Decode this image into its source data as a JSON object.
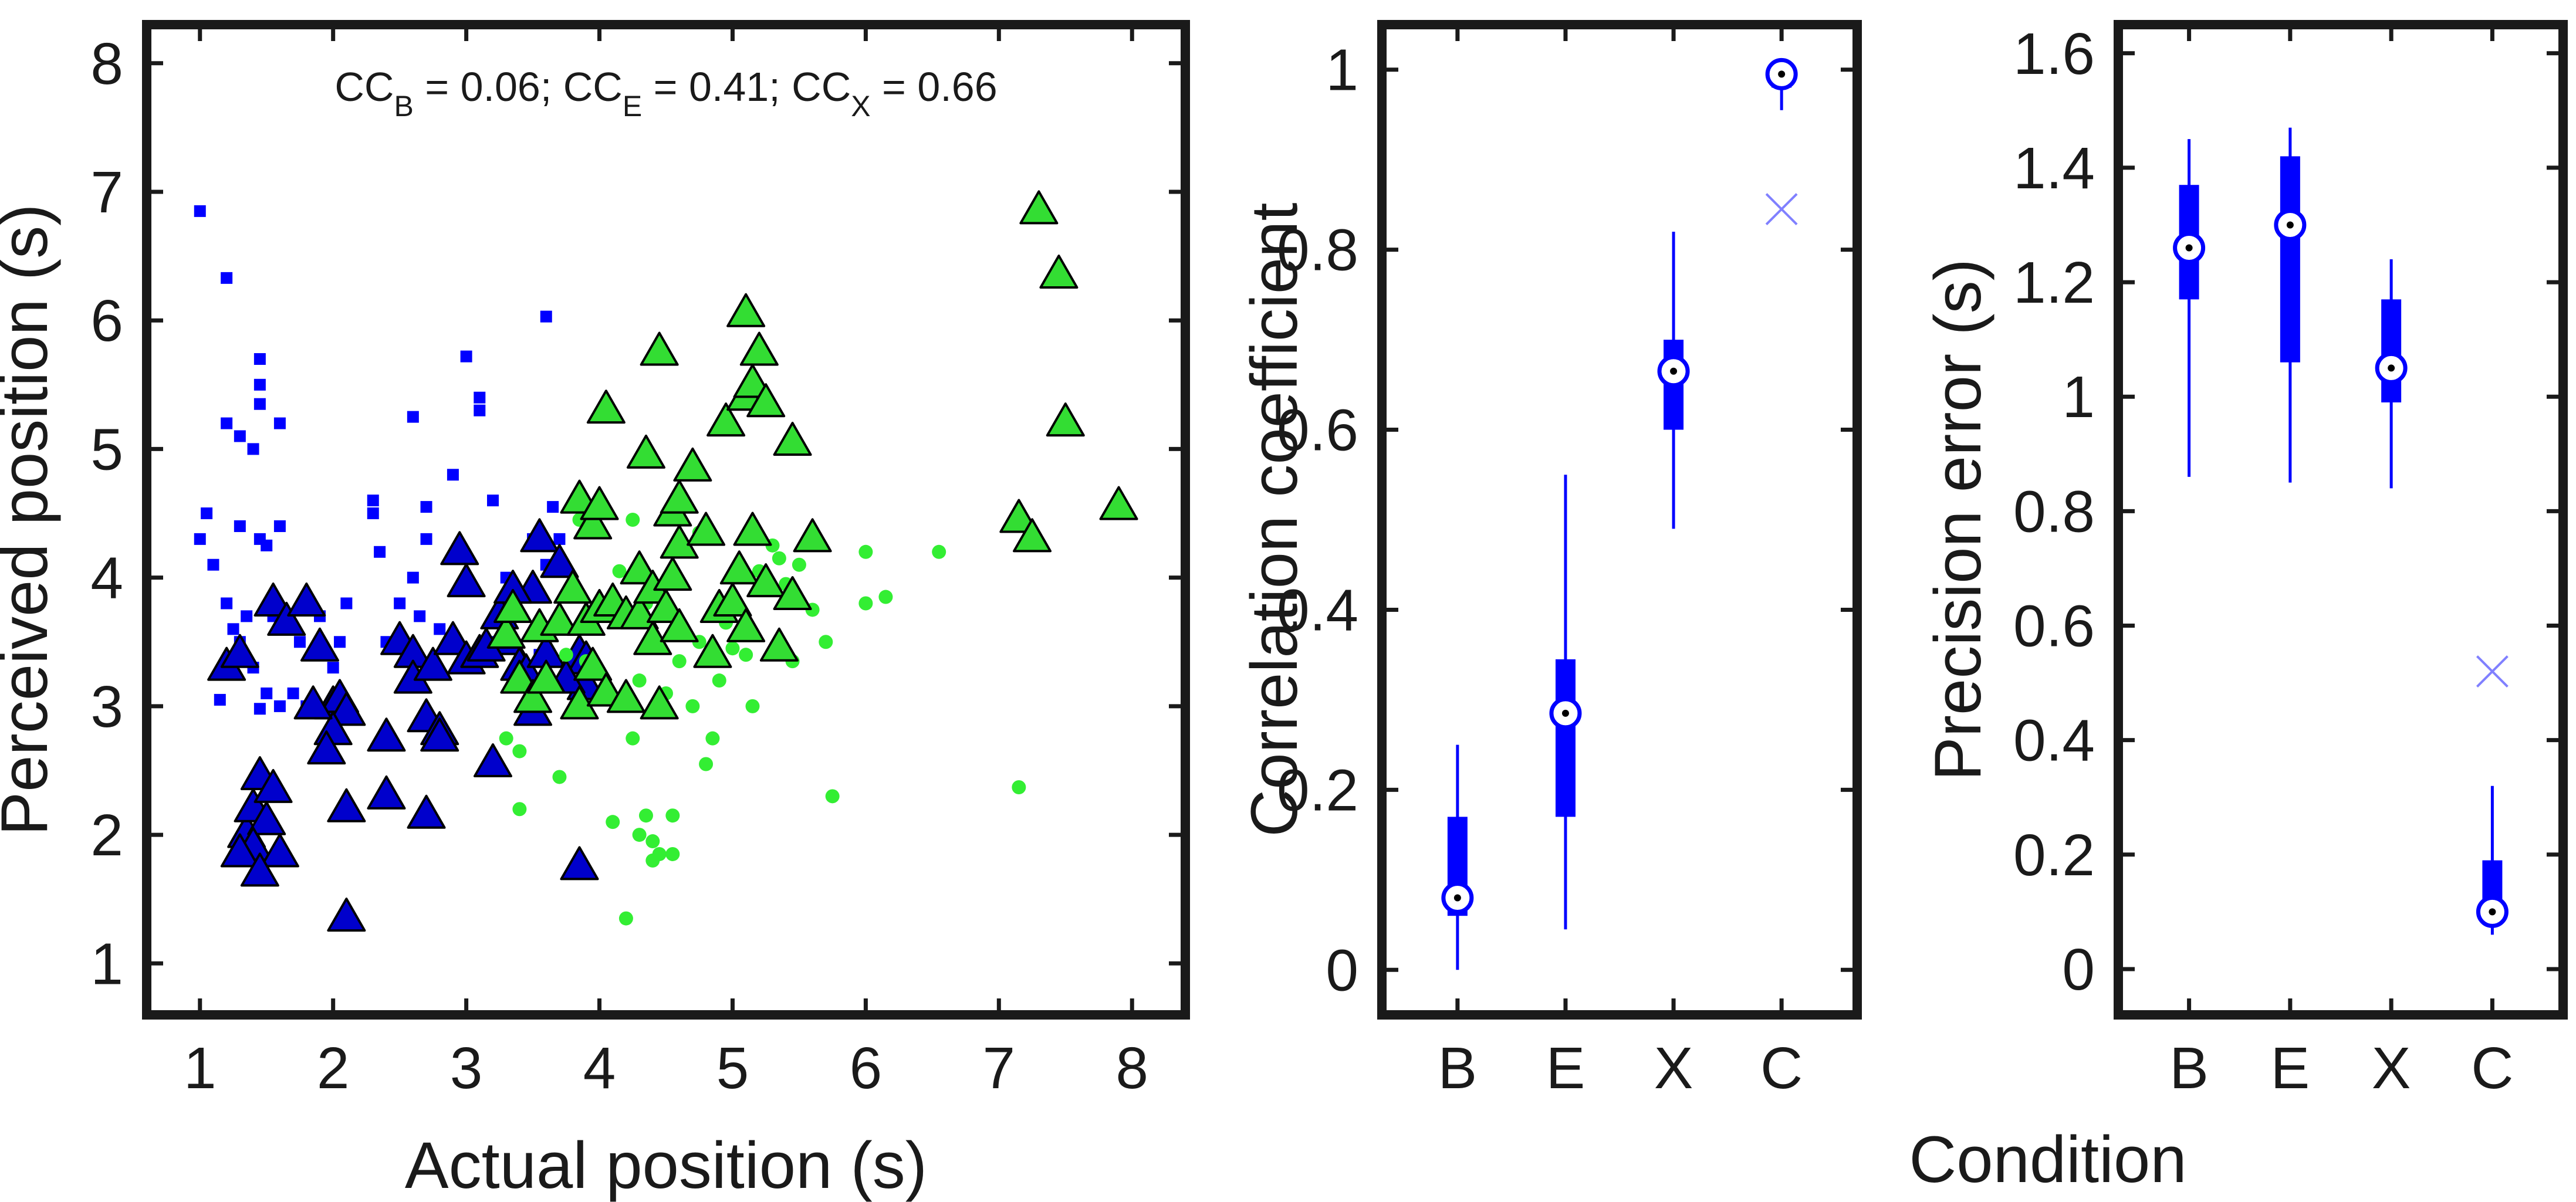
{
  "colors": {
    "scatter_blue": "#0000ff",
    "triangle_blue": "#0000cc",
    "green": "#33ee33",
    "triangle_green": "#33dd33",
    "boxplot_blue": "#0000ff",
    "cross_blue": "#8080ff",
    "axes": "#1a1a1a"
  },
  "annotation": {
    "cc_b_base": "CC",
    "cc_b_sub": "B",
    "cc_b_value": " = 0.06; ",
    "cc_e_base": "CC",
    "cc_e_sub": "E",
    "cc_e_value": " = 0.41; ",
    "cc_x_base": "CC",
    "cc_x_sub": "X",
    "cc_x_value": " = 0.66"
  },
  "shared_xlabel": "Condition",
  "chart_data": [
    {
      "type": "scatter",
      "xlabel": "Actual position (s)",
      "ylabel": "Perceived position (s)",
      "xlim": [
        0.6,
        8.4
      ],
      "ylim": [
        0.6,
        8.3
      ],
      "xticks": [
        "1",
        "2",
        "3",
        "4",
        "5",
        "6",
        "7",
        "8"
      ],
      "yticks": [
        "1",
        "2",
        "3",
        "4",
        "5",
        "6",
        "7",
        "8"
      ],
      "grid": false,
      "series": [
        {
          "marker": "square",
          "color": "blue",
          "points": [
            [
              1.0,
              6.85
            ],
            [
              1.2,
              6.33
            ],
            [
              1.05,
              4.5
            ],
            [
              1.0,
              4.3
            ],
            [
              1.1,
              4.1
            ],
            [
              1.2,
              5.2
            ],
            [
              1.3,
              5.1
            ],
            [
              1.4,
              5.0
            ],
            [
              1.45,
              5.7
            ],
            [
              1.45,
              5.5
            ],
            [
              1.45,
              5.35
            ],
            [
              1.6,
              5.2
            ],
            [
              1.3,
              4.4
            ],
            [
              1.45,
              4.3
            ],
            [
              1.5,
              4.25
            ],
            [
              1.6,
              4.4
            ],
            [
              1.2,
              3.8
            ],
            [
              1.25,
              3.6
            ],
            [
              1.3,
              3.5
            ],
            [
              1.35,
              3.7
            ],
            [
              1.4,
              3.3
            ],
            [
              1.5,
              3.1
            ],
            [
              1.55,
              3.7
            ],
            [
              1.6,
              3.0
            ],
            [
              1.7,
              3.1
            ],
            [
              1.75,
              3.5
            ],
            [
              1.8,
              3.8
            ],
            [
              1.9,
              3.7
            ],
            [
              2.0,
              3.3
            ],
            [
              2.05,
              3.5
            ],
            [
              2.1,
              3.8
            ],
            [
              1.15,
              3.05
            ],
            [
              1.45,
              2.98
            ],
            [
              1.8,
              3.0
            ],
            [
              1.6,
              3.6
            ],
            [
              2.3,
              4.6
            ],
            [
              2.3,
              4.5
            ],
            [
              2.35,
              4.2
            ],
            [
              2.4,
              3.5
            ],
            [
              2.5,
              3.8
            ],
            [
              2.6,
              4.0
            ],
            [
              2.65,
              3.7
            ],
            [
              2.7,
              4.3
            ],
            [
              2.7,
              4.55
            ],
            [
              2.8,
              3.6
            ],
            [
              2.9,
              4.8
            ],
            [
              3.0,
              5.72
            ],
            [
              3.1,
              5.4
            ],
            [
              3.1,
              5.3
            ],
            [
              2.6,
              5.25
            ],
            [
              3.6,
              6.03
            ],
            [
              3.2,
              4.6
            ],
            [
              3.3,
              4.0
            ],
            [
              3.5,
              4.3
            ],
            [
              3.4,
              3.7
            ],
            [
              3.55,
              3.4
            ],
            [
              3.6,
              4.1
            ],
            [
              3.7,
              4.3
            ],
            [
              3.65,
              4.55
            ],
            [
              3.0,
              3.9
            ],
            [
              3.2,
              3.5
            ]
          ]
        },
        {
          "marker": "triangle",
          "color": "blue",
          "points": [
            [
              1.2,
              3.3
            ],
            [
              1.3,
              3.4
            ],
            [
              1.55,
              3.8
            ],
            [
              1.65,
              3.65
            ],
            [
              1.8,
              3.8
            ],
            [
              1.9,
              3.45
            ],
            [
              2.0,
              3.0
            ],
            [
              2.05,
              3.05
            ],
            [
              2.1,
              2.95
            ],
            [
              2.0,
              2.8
            ],
            [
              1.95,
              2.65
            ],
            [
              1.85,
              3.0
            ],
            [
              1.35,
              2.0
            ],
            [
              1.4,
              2.2
            ],
            [
              1.45,
              2.45
            ],
            [
              1.5,
              2.1
            ],
            [
              1.55,
              2.35
            ],
            [
              1.4,
              1.9
            ],
            [
              1.3,
              1.85
            ],
            [
              1.6,
              1.85
            ],
            [
              1.45,
              1.7
            ],
            [
              2.1,
              2.2
            ],
            [
              2.1,
              1.35
            ],
            [
              2.4,
              2.75
            ],
            [
              2.4,
              2.3
            ],
            [
              2.5,
              3.5
            ],
            [
              2.6,
              3.4
            ],
            [
              2.6,
              3.2
            ],
            [
              2.7,
              2.9
            ],
            [
              2.75,
              3.3
            ],
            [
              2.8,
              2.8
            ],
            [
              2.8,
              2.75
            ],
            [
              2.7,
              2.15
            ],
            [
              2.9,
              3.5
            ],
            [
              2.95,
              4.2
            ],
            [
              3.0,
              3.35
            ],
            [
              3.0,
              3.95
            ],
            [
              3.1,
              3.4
            ],
            [
              3.2,
              2.55
            ],
            [
              3.25,
              3.7
            ],
            [
              3.3,
              3.5
            ],
            [
              3.4,
              3.3
            ],
            [
              3.45,
              3.25
            ],
            [
              3.5,
              3.9
            ],
            [
              3.55,
              4.3
            ],
            [
              3.6,
              3.4
            ],
            [
              3.7,
              4.1
            ],
            [
              3.5,
              2.95
            ],
            [
              3.85,
              3.4
            ],
            [
              3.9,
              3.15
            ],
            [
              3.9,
              3.35
            ],
            [
              3.85,
              1.75
            ],
            [
              3.15,
              3.45
            ],
            [
              3.35,
              3.9
            ],
            [
              3.75,
              3.2
            ]
          ]
        },
        {
          "marker": "circle",
          "color": "green",
          "points": [
            [
              3.3,
              2.75
            ],
            [
              3.4,
              2.2
            ],
            [
              3.4,
              2.65
            ],
            [
              3.7,
              2.45
            ],
            [
              3.75,
              3.4
            ],
            [
              3.9,
              3.35
            ],
            [
              4.1,
              2.1
            ],
            [
              4.2,
              1.35
            ],
            [
              4.3,
              2.0
            ],
            [
              4.35,
              2.15
            ],
            [
              4.4,
              1.95
            ],
            [
              4.4,
              1.8
            ],
            [
              4.45,
              1.85
            ],
            [
              4.55,
              1.85
            ],
            [
              4.55,
              2.15
            ],
            [
              4.25,
              2.75
            ],
            [
              4.3,
              3.2
            ],
            [
              4.4,
              3.55
            ],
            [
              4.5,
              3.1
            ],
            [
              4.6,
              3.35
            ],
            [
              4.7,
              3.0
            ],
            [
              4.75,
              3.5
            ],
            [
              4.8,
              2.55
            ],
            [
              4.85,
              2.75
            ],
            [
              4.9,
              3.2
            ],
            [
              5.0,
              3.75
            ],
            [
              5.0,
              3.45
            ],
            [
              5.1,
              3.4
            ],
            [
              5.2,
              4.05
            ],
            [
              5.3,
              4.25
            ],
            [
              5.35,
              4.15
            ],
            [
              5.4,
              3.95
            ],
            [
              5.45,
              3.35
            ],
            [
              5.5,
              4.1
            ],
            [
              5.6,
              3.75
            ],
            [
              5.7,
              3.5
            ],
            [
              5.75,
              2.3
            ],
            [
              6.0,
              4.2
            ],
            [
              6.0,
              3.8
            ],
            [
              6.15,
              3.85
            ],
            [
              6.55,
              4.2
            ],
            [
              7.15,
              2.37
            ],
            [
              4.35,
              3.8
            ],
            [
              4.75,
              4.35
            ],
            [
              4.95,
              3.65
            ],
            [
              5.15,
              3.0
            ],
            [
              4.15,
              4.05
            ],
            [
              4.25,
              4.45
            ],
            [
              3.85,
              4.45
            ]
          ]
        },
        {
          "marker": "triangle",
          "color": "green",
          "points": [
            [
              3.3,
              3.55
            ],
            [
              3.35,
              3.75
            ],
            [
              3.4,
              3.2
            ],
            [
              3.5,
              3.05
            ],
            [
              3.55,
              3.6
            ],
            [
              3.6,
              3.2
            ],
            [
              3.7,
              3.65
            ],
            [
              3.8,
              3.9
            ],
            [
              3.85,
              3.0
            ],
            [
              3.9,
              3.65
            ],
            [
              3.95,
              3.3
            ],
            [
              4.0,
              3.75
            ],
            [
              4.05,
              3.1
            ],
            [
              4.1,
              3.8
            ],
            [
              4.2,
              3.7
            ],
            [
              4.2,
              3.05
            ],
            [
              4.3,
              4.05
            ],
            [
              4.3,
              3.7
            ],
            [
              4.4,
              3.9
            ],
            [
              4.4,
              3.5
            ],
            [
              4.45,
              3.0
            ],
            [
              4.5,
              3.75
            ],
            [
              4.55,
              4.0
            ],
            [
              4.6,
              3.6
            ],
            [
              4.6,
              4.25
            ],
            [
              4.8,
              4.35
            ],
            [
              4.85,
              3.4
            ],
            [
              4.9,
              3.75
            ],
            [
              5.0,
              3.8
            ],
            [
              5.05,
              4.05
            ],
            [
              5.1,
              3.6
            ],
            [
              5.15,
              4.35
            ],
            [
              5.25,
              3.95
            ],
            [
              5.35,
              3.45
            ],
            [
              5.45,
              3.85
            ],
            [
              5.6,
              4.3
            ],
            [
              3.85,
              4.6
            ],
            [
              3.95,
              4.4
            ],
            [
              4.0,
              4.55
            ],
            [
              4.05,
              5.3
            ],
            [
              4.35,
              4.95
            ],
            [
              4.45,
              5.75
            ],
            [
              4.55,
              4.5
            ],
            [
              4.6,
              4.6
            ],
            [
              4.7,
              4.85
            ],
            [
              4.95,
              5.2
            ],
            [
              5.1,
              5.4
            ],
            [
              5.1,
              6.05
            ],
            [
              5.15,
              5.5
            ],
            [
              5.2,
              5.75
            ],
            [
              5.25,
              5.35
            ],
            [
              5.45,
              5.05
            ],
            [
              7.15,
              4.45
            ],
            [
              7.25,
              4.3
            ],
            [
              7.3,
              6.85
            ],
            [
              7.45,
              6.35
            ],
            [
              7.5,
              5.2
            ],
            [
              7.9,
              4.55
            ]
          ]
        }
      ]
    },
    {
      "type": "boxplot",
      "xlabel": "",
      "ylabel": "Correlation coefficient",
      "categories": [
        "B",
        "E",
        "X",
        "C"
      ],
      "ylim": [
        -0.05,
        1.05
      ],
      "yticks": [
        "0",
        "0.2",
        "0.4",
        "0.6",
        "0.8",
        "1"
      ],
      "boxes": [
        {
          "category": "B",
          "whisker_low": 0.0,
          "q1": 0.06,
          "median": 0.08,
          "q3": 0.17,
          "whisker_high": 0.25
        },
        {
          "category": "E",
          "whisker_low": 0.045,
          "q1": 0.17,
          "median": 0.285,
          "q3": 0.345,
          "whisker_high": 0.55
        },
        {
          "category": "X",
          "whisker_low": 0.49,
          "q1": 0.6,
          "median": 0.665,
          "q3": 0.7,
          "whisker_high": 0.82
        },
        {
          "category": "C",
          "whisker_low": 0.955,
          "q1": 0.98,
          "median": 0.995,
          "q3": 1.0,
          "whisker_high": 1.0
        }
      ],
      "outliers": [
        {
          "category": "C",
          "value": 0.845,
          "marker": "x"
        }
      ]
    },
    {
      "type": "boxplot",
      "xlabel": "",
      "ylabel": "Precision error (s)",
      "categories": [
        "B",
        "E",
        "X",
        "C"
      ],
      "ylim": [
        -0.08,
        1.65
      ],
      "yticks": [
        "0",
        "0.2",
        "0.4",
        "0.6",
        "0.8",
        "1",
        "1.2",
        "1.4",
        "1.6"
      ],
      "boxes": [
        {
          "category": "B",
          "whisker_low": 0.86,
          "q1": 1.17,
          "median": 1.26,
          "q3": 1.37,
          "whisker_high": 1.45
        },
        {
          "category": "E",
          "whisker_low": 0.85,
          "q1": 1.06,
          "median": 1.3,
          "q3": 1.42,
          "whisker_high": 1.47
        },
        {
          "category": "X",
          "whisker_low": 0.84,
          "q1": 0.99,
          "median": 1.05,
          "q3": 1.17,
          "whisker_high": 1.24
        },
        {
          "category": "C",
          "whisker_low": 0.06,
          "q1": 0.08,
          "median": 0.1,
          "q3": 0.19,
          "whisker_high": 0.32
        }
      ],
      "outliers": [
        {
          "category": "C",
          "value": 0.52,
          "marker": "x"
        }
      ]
    }
  ]
}
